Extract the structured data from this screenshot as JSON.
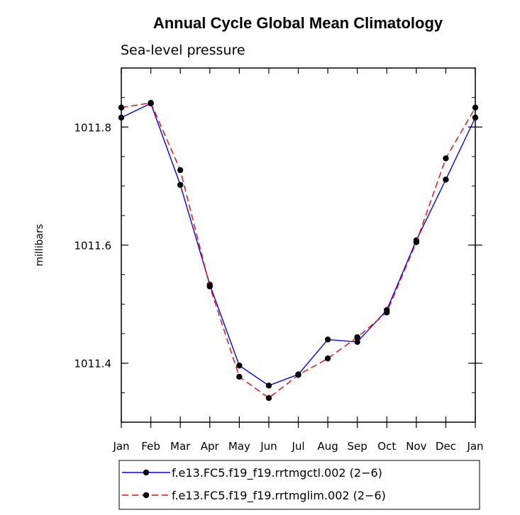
{
  "chart_data": {
    "type": "line",
    "title": "Annual Cycle Global Mean Climatology",
    "subtitle": "Sea-level pressure",
    "xlabel": "",
    "ylabel": "millibars",
    "categories": [
      "Jan",
      "Feb",
      "Mar",
      "Apr",
      "May",
      "Jun",
      "Jul",
      "Aug",
      "Sep",
      "Oct",
      "Nov",
      "Dec",
      "Jan"
    ],
    "ylim": [
      1011.3,
      1011.9
    ],
    "yticks": [
      {
        "value": 1011.4,
        "label": "1011.4"
      },
      {
        "value": 1011.6,
        "label": "1011.6"
      },
      {
        "value": 1011.8,
        "label": "1011.8"
      }
    ],
    "series": [
      {
        "name": "f.e13.FC5.f19_f19.rrtmgctl.002 (2−6)",
        "color": "#0000ff",
        "dash": "solid",
        "values": [
          1011.816,
          1011.84,
          1011.702,
          1011.533,
          1011.396,
          1011.362,
          1011.381,
          1011.44,
          1011.436,
          1011.49,
          1011.608,
          1011.711,
          1011.816
        ]
      },
      {
        "name": "f.e13.FC5.f19_f19.rrtmglim.002 (2−6)",
        "color": "#ff0000",
        "dash": "dashed",
        "values": [
          1011.833,
          1011.841,
          1011.727,
          1011.53,
          1011.377,
          1011.341,
          1011.38,
          1011.408,
          1011.444,
          1011.486,
          1011.605,
          1011.747,
          1011.833
        ]
      }
    ]
  }
}
